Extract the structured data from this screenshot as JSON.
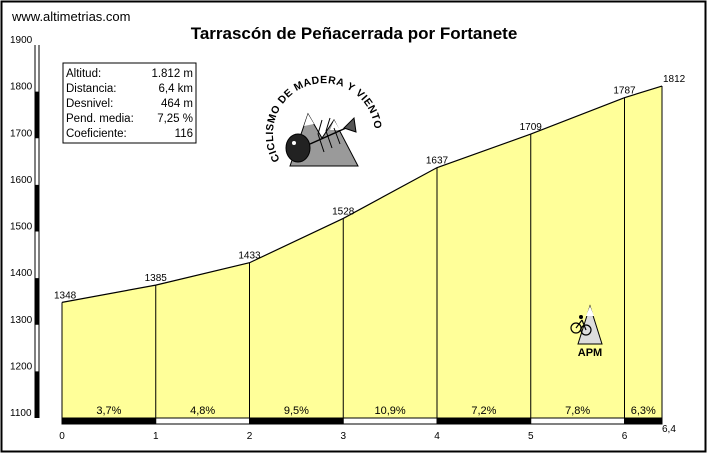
{
  "site": "www.altimetrias.com",
  "chart_data": {
    "type": "area",
    "title": "Tarrascón de Peñacerrada por Fortanete",
    "xlabel": "",
    "ylabel": "",
    "xlim": [
      0,
      6.4
    ],
    "ylim": [
      1100,
      1900
    ],
    "grid": false,
    "x_ticks": [
      {
        "value": 0,
        "label": "0"
      },
      {
        "value": 1,
        "label": "1"
      },
      {
        "value": 2,
        "label": "2"
      },
      {
        "value": 3,
        "label": "3"
      },
      {
        "value": 4,
        "label": "4"
      },
      {
        "value": 5,
        "label": "5"
      },
      {
        "value": 6,
        "label": "6"
      },
      {
        "value": 6.4,
        "label": "6,4"
      }
    ],
    "y_ticks": [
      {
        "value": 1100,
        "label": "1100"
      },
      {
        "value": 1200,
        "label": "1200"
      },
      {
        "value": 1300,
        "label": "1300"
      },
      {
        "value": 1400,
        "label": "1400"
      },
      {
        "value": 1500,
        "label": "1500"
      },
      {
        "value": 1600,
        "label": "1600"
      },
      {
        "value": 1700,
        "label": "1700"
      },
      {
        "value": 1800,
        "label": "1800"
      },
      {
        "value": 1900,
        "label": "1900"
      }
    ],
    "points": [
      {
        "x": 0,
        "y": 1348,
        "label": "1348"
      },
      {
        "x": 1,
        "y": 1385,
        "label": "1385"
      },
      {
        "x": 2,
        "y": 1433,
        "label": "1433"
      },
      {
        "x": 3,
        "y": 1528,
        "label": "1528"
      },
      {
        "x": 4,
        "y": 1637,
        "label": "1637"
      },
      {
        "x": 5,
        "y": 1709,
        "label": "1709"
      },
      {
        "x": 6,
        "y": 1787,
        "label": "1787"
      },
      {
        "x": 6.4,
        "y": 1812,
        "label": "1812"
      }
    ],
    "segments": [
      {
        "from": 0,
        "to": 1,
        "gradient": "3,7%"
      },
      {
        "from": 1,
        "to": 2,
        "gradient": "4,8%"
      },
      {
        "from": 2,
        "to": 3,
        "gradient": "9,5%"
      },
      {
        "from": 3,
        "to": 4,
        "gradient": "10,9%"
      },
      {
        "from": 4,
        "to": 5,
        "gradient": "7,2%"
      },
      {
        "from": 5,
        "to": 6,
        "gradient": "7,8%"
      },
      {
        "from": 6,
        "to": 6.4,
        "gradient": "6,3%"
      }
    ],
    "colors": {
      "fill": "#ffff99",
      "line": "#000000"
    }
  },
  "stats": [
    {
      "label": "Altitud:",
      "value": "1.812 m"
    },
    {
      "label": "Distancia:",
      "value": "6,4 km"
    },
    {
      "label": "Desnivel:",
      "value": "464 m"
    },
    {
      "label": "Pend. media:",
      "value": "7,25 %"
    },
    {
      "label": "Coeficiente:",
      "value": "116"
    }
  ],
  "logo": {
    "text": "CICLISMO DE MADERA Y VIENTO",
    "icon": "mountain-fish-logo"
  },
  "badge": {
    "text": "APM",
    "icon": "mountain-cyclist-icon"
  }
}
